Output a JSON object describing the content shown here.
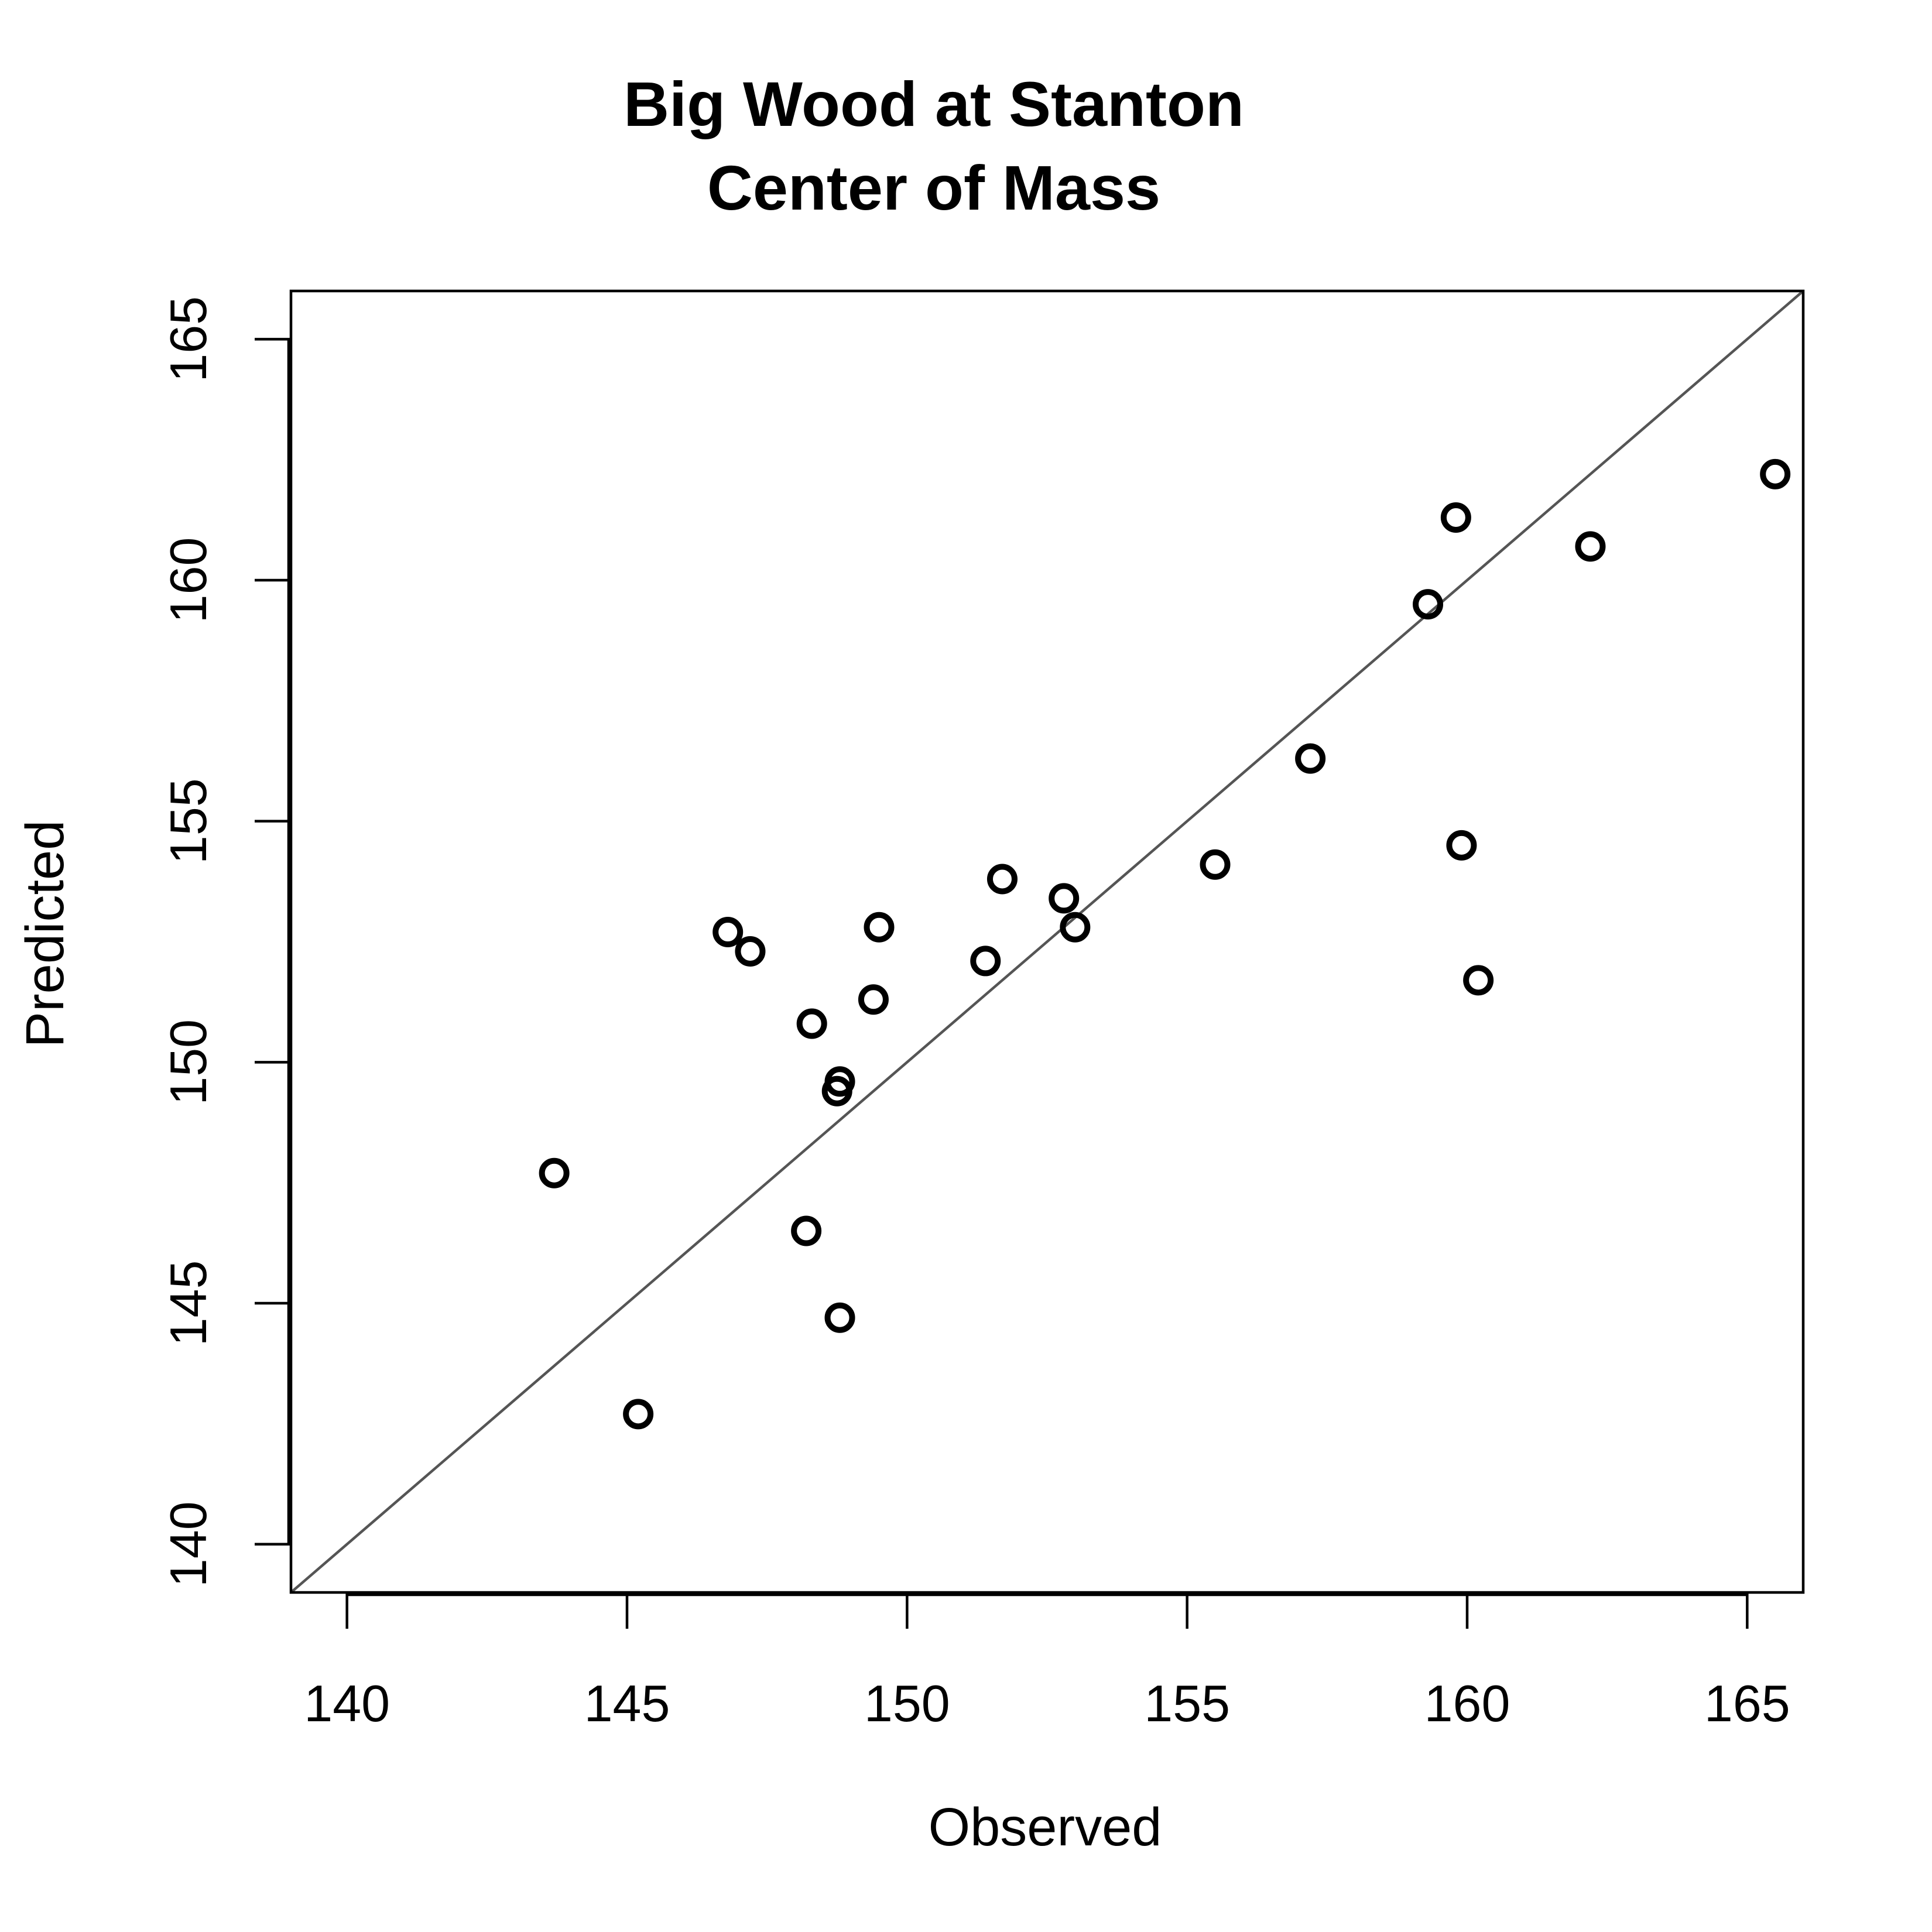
{
  "chart_data": {
    "type": "scatter",
    "title": [
      "Big Wood at Stanton",
      "Center of Mass"
    ],
    "xlabel": "Observed",
    "ylabel": "Predicted",
    "xlim": [
      139,
      166
    ],
    "ylim": [
      139,
      166
    ],
    "xticks": [
      140,
      145,
      150,
      155,
      160,
      165
    ],
    "yticks": [
      140,
      145,
      150,
      155,
      160,
      165
    ],
    "reference_line": {
      "type": "1:1",
      "color": "#555555"
    },
    "point_style": {
      "shape": "open-circle",
      "color": "#000000"
    },
    "points": [
      {
        "x": 143.7,
        "y": 147.7
      },
      {
        "x": 145.2,
        "y": 142.7
      },
      {
        "x": 146.8,
        "y": 152.7
      },
      {
        "x": 147.2,
        "y": 152.3
      },
      {
        "x": 148.2,
        "y": 146.5
      },
      {
        "x": 148.3,
        "y": 150.8
      },
      {
        "x": 148.8,
        "y": 149.6
      },
      {
        "x": 148.75,
        "y": 149.4
      },
      {
        "x": 148.8,
        "y": 144.7
      },
      {
        "x": 149.4,
        "y": 151.3
      },
      {
        "x": 149.5,
        "y": 152.8
      },
      {
        "x": 151.4,
        "y": 152.1
      },
      {
        "x": 151.7,
        "y": 153.8
      },
      {
        "x": 152.8,
        "y": 153.4
      },
      {
        "x": 153.0,
        "y": 152.8
      },
      {
        "x": 155.5,
        "y": 154.1
      },
      {
        "x": 157.2,
        "y": 156.3
      },
      {
        "x": 159.3,
        "y": 159.5
      },
      {
        "x": 159.8,
        "y": 161.3
      },
      {
        "x": 159.9,
        "y": 154.5
      },
      {
        "x": 160.2,
        "y": 151.7
      },
      {
        "x": 162.2,
        "y": 160.7
      },
      {
        "x": 165.5,
        "y": 162.2
      }
    ]
  }
}
